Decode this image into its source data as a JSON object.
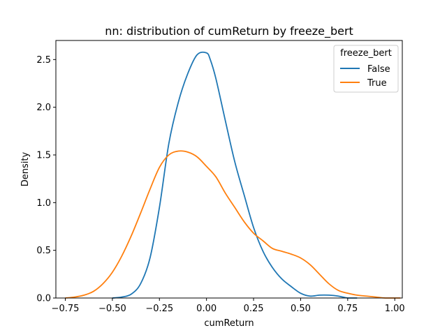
{
  "chart_data": {
    "type": "line",
    "title": "nn: distribution of cumReturn by freeze_bert",
    "xlabel": "cumReturn",
    "ylabel": "Density",
    "xlim": [
      -0.8,
      1.04
    ],
    "ylim": [
      0,
      2.7
    ],
    "xticks": [
      -0.75,
      -0.5,
      -0.25,
      0.0,
      0.25,
      0.5,
      0.75,
      1.0
    ],
    "xtick_labels": [
      "−0.75",
      "−0.50",
      "−0.25",
      "0.00",
      "0.25",
      "0.50",
      "0.75",
      "1.00"
    ],
    "yticks": [
      0.0,
      0.5,
      1.0,
      1.5,
      2.0,
      2.5
    ],
    "ytick_labels": [
      "0.0",
      "0.5",
      "1.0",
      "1.5",
      "2.0",
      "2.5"
    ],
    "grid": false,
    "legend": {
      "title": "freeze_bert",
      "placement": "top-right"
    },
    "series": [
      {
        "name": "False",
        "color": "#1f77b4",
        "x": [
          -0.5,
          -0.45,
          -0.4,
          -0.35,
          -0.3,
          -0.25,
          -0.2,
          -0.15,
          -0.1,
          -0.05,
          0.0,
          0.02,
          0.05,
          0.1,
          0.15,
          0.2,
          0.25,
          0.3,
          0.35,
          0.4,
          0.45,
          0.5,
          0.55,
          0.6,
          0.65,
          0.7,
          0.75,
          0.8
        ],
        "y": [
          0.0,
          0.01,
          0.04,
          0.15,
          0.42,
          0.95,
          1.62,
          2.05,
          2.35,
          2.55,
          2.57,
          2.5,
          2.3,
          1.86,
          1.43,
          1.08,
          0.74,
          0.49,
          0.32,
          0.2,
          0.12,
          0.05,
          0.02,
          0.03,
          0.03,
          0.02,
          0.0,
          0.0
        ]
      },
      {
        "name": "True",
        "color": "#ff7f0e",
        "x": [
          -0.75,
          -0.7,
          -0.65,
          -0.6,
          -0.55,
          -0.5,
          -0.45,
          -0.4,
          -0.35,
          -0.3,
          -0.25,
          -0.2,
          -0.15,
          -0.1,
          -0.05,
          0.0,
          0.05,
          0.1,
          0.15,
          0.2,
          0.25,
          0.3,
          0.35,
          0.4,
          0.45,
          0.5,
          0.55,
          0.6,
          0.65,
          0.7,
          0.75,
          0.8,
          0.85,
          0.9,
          0.95,
          1.0,
          1.03
        ],
        "y": [
          0.0,
          0.01,
          0.03,
          0.07,
          0.15,
          0.27,
          0.44,
          0.65,
          0.89,
          1.14,
          1.37,
          1.5,
          1.54,
          1.53,
          1.48,
          1.38,
          1.27,
          1.1,
          0.95,
          0.8,
          0.68,
          0.6,
          0.52,
          0.49,
          0.46,
          0.42,
          0.35,
          0.25,
          0.15,
          0.08,
          0.05,
          0.03,
          0.02,
          0.01,
          0.0,
          0.0,
          0.0
        ]
      }
    ]
  }
}
